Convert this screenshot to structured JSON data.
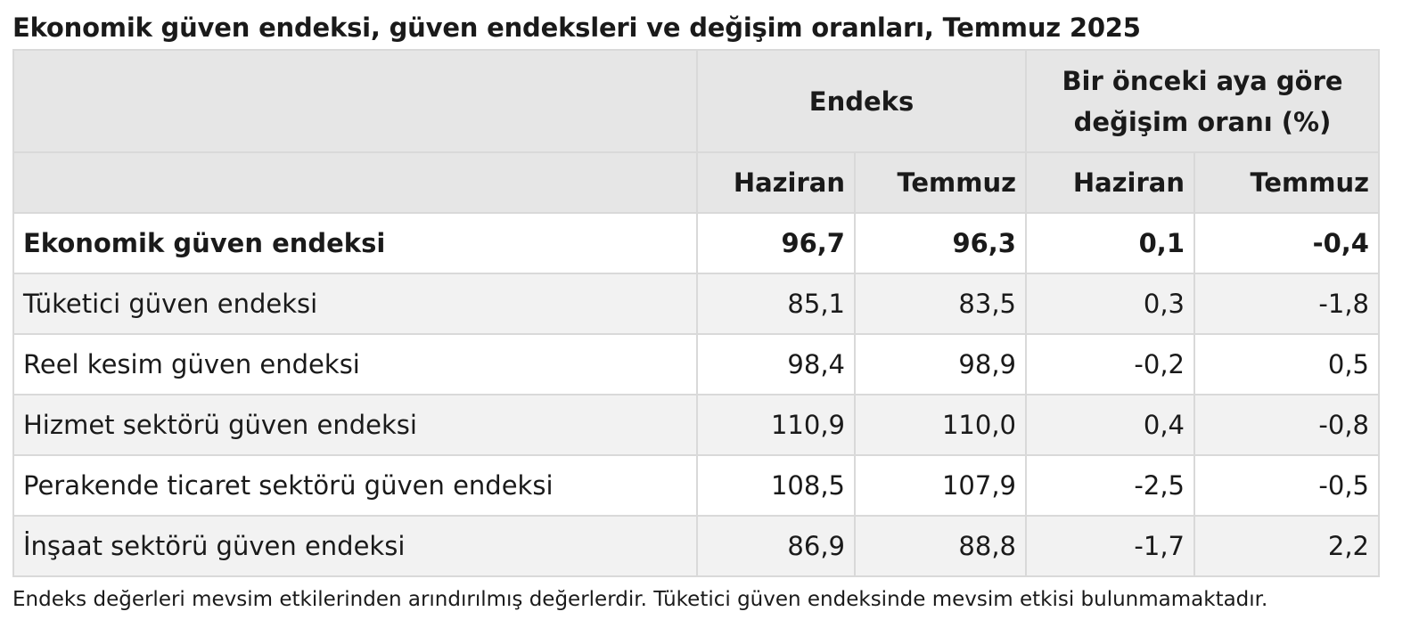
{
  "title": "Ekonomik güven endeksi, güven endeksleri ve değişim oranları, Temmuz 2025",
  "header": {
    "group_index": "Endeks",
    "group_change_line1": "Bir önceki aya göre",
    "group_change_line2": "değişim oranı (%)",
    "col_jun_index": "Haziran",
    "col_jul_index": "Temmuz",
    "col_jun_change": "Haziran",
    "col_jul_change": "Temmuz"
  },
  "rows": [
    {
      "label": "Ekonomik güven endeksi",
      "idx_jun": "96,7",
      "idx_jul": "96,3",
      "chg_jun": "0,1",
      "chg_jul": "-0,4"
    },
    {
      "label": "Tüketici güven endeksi",
      "idx_jun": "85,1",
      "idx_jul": "83,5",
      "chg_jun": "0,3",
      "chg_jul": "-1,8"
    },
    {
      "label": "Reel kesim güven endeksi",
      "idx_jun": "98,4",
      "idx_jul": "98,9",
      "chg_jun": "-0,2",
      "chg_jul": "0,5"
    },
    {
      "label": "Hizmet sektörü güven endeksi",
      "idx_jun": "110,9",
      "idx_jul": "110,0",
      "chg_jun": "0,4",
      "chg_jul": "-0,8"
    },
    {
      "label": "Perakende ticaret sektörü güven endeksi",
      "idx_jun": "108,5",
      "idx_jul": "107,9",
      "chg_jun": "-2,5",
      "chg_jul": "-0,5"
    },
    {
      "label": "İnşaat sektörü güven endeksi",
      "idx_jun": "86,9",
      "idx_jul": "88,8",
      "chg_jun": "-1,7",
      "chg_jul": "2,2"
    }
  ],
  "note": "Endeks değerleri mevsim etkilerinden arındırılmış değerlerdir. Tüketici güven endeksinde mevsim etkisi bulunmamaktadır.",
  "colors": {
    "header_bg": "#e6e6e6",
    "alt_row_bg": "#f2f2f2",
    "border": "#d9d9d9"
  }
}
